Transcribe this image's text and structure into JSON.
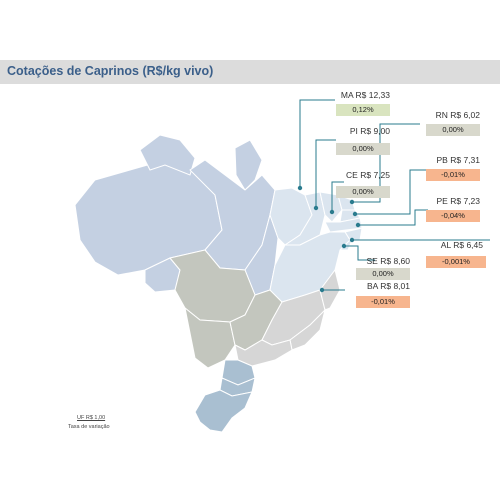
{
  "title": "Cotações de Caprinos (R$/kg vivo)",
  "states": [
    {
      "label": "MA R$ 12,33",
      "change": "0,12%",
      "color": "green"
    },
    {
      "label": "PI R$ 9,00",
      "change": "0,00%",
      "color": "gray"
    },
    {
      "label": "CE R$ 7,25",
      "change": "0,00%",
      "color": "gray"
    },
    {
      "label": "RN R$ 6,02",
      "change": "0,00%",
      "color": "gray"
    },
    {
      "label": "PB R$ 7,31",
      "change": "-0,01%",
      "color": "orange"
    },
    {
      "label": "PE R$ 7,23",
      "change": "-0,04%",
      "color": "orange"
    },
    {
      "label": "AL R$ 6,45",
      "change": "-0,001%",
      "color": "orange"
    },
    {
      "label": "SE R$ 8,60",
      "change": "0,00%",
      "color": "gray"
    },
    {
      "label": "BA R$ 8,01",
      "change": "-0,01%",
      "color": "orange"
    }
  ],
  "legend": {
    "uf": "UF R$ 1,00",
    "taxa": "Taxa de variação"
  },
  "colors": {
    "north": "#c4d0e2",
    "center_west": "#c3c6be",
    "northeast": "#dbe5ef",
    "southeast": "#d6d6d6",
    "south": "#a9bfd1",
    "marker": "#2a7b8e",
    "title": "#3b5f8a"
  }
}
